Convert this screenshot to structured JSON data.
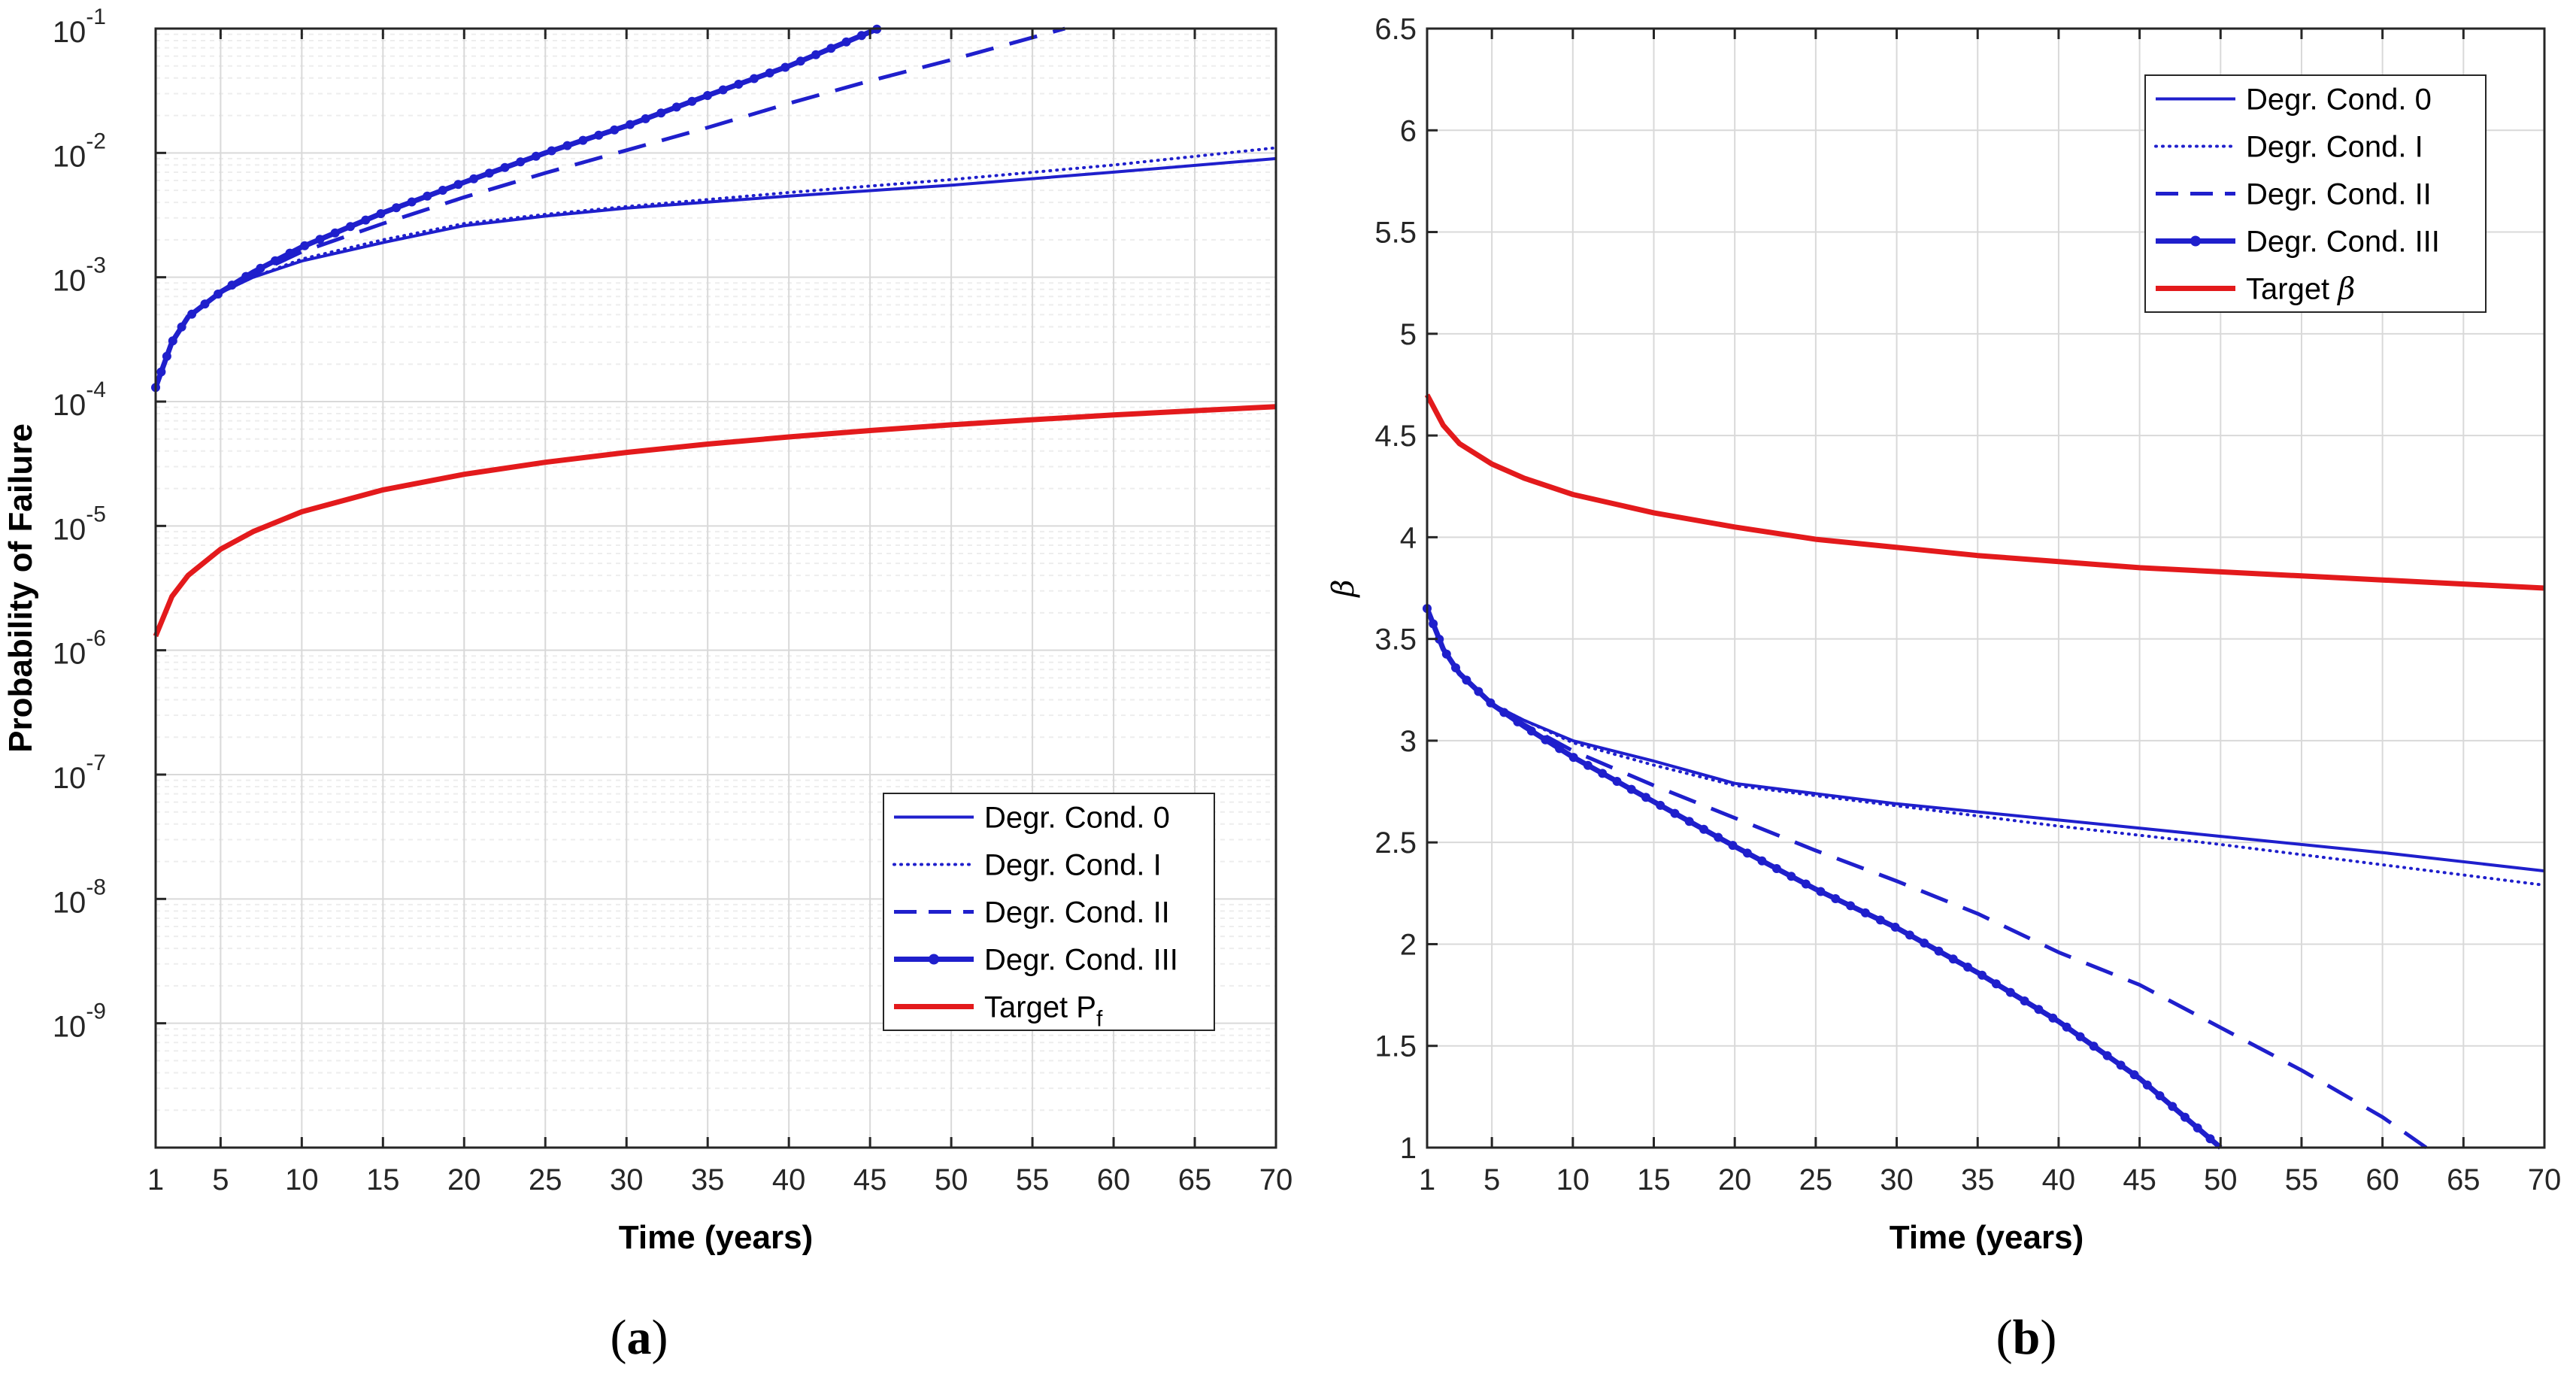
{
  "chart_data": [
    {
      "type": "line",
      "panel": "a",
      "caption": "(a)",
      "xlabel": "Time (years)",
      "ylabel": "Probability of Failure",
      "yscale": "log",
      "xlim": [
        1,
        70
      ],
      "ylim": [
        1e-10,
        0.1
      ],
      "grid": true,
      "legend_position": "bottom-right",
      "x_ticks": [
        1,
        5,
        10,
        15,
        20,
        25,
        30,
        35,
        40,
        45,
        50,
        55,
        60,
        65,
        70
      ],
      "x_tick_labels": [
        "1",
        "5",
        "10",
        "15",
        "20",
        "25",
        "30",
        "35",
        "40",
        "45",
        "50",
        "55",
        "60",
        "65",
        "70"
      ],
      "y_tick_labels": [
        {
          "base": "10",
          "exp": "-9"
        },
        {
          "base": "10",
          "exp": "-8"
        },
        {
          "base": "10",
          "exp": "-7"
        },
        {
          "base": "10",
          "exp": "-6"
        },
        {
          "base": "10",
          "exp": "-5"
        },
        {
          "base": "10",
          "exp": "-4"
        },
        {
          "base": "10",
          "exp": "-3"
        },
        {
          "base": "10",
          "exp": "-2"
        },
        {
          "base": "10",
          "exp": "-1"
        }
      ],
      "series": [
        {
          "name": "Degr. Cond. 0",
          "style": "solid",
          "color": "#1f1fcc",
          "x": [
            1,
            2,
            3,
            5,
            7,
            10,
            15,
            20,
            25,
            30,
            40,
            50,
            60,
            70
          ],
          "y": [
            0.00013,
            0.0003,
            0.00048,
            0.00075,
            0.001,
            0.00135,
            0.0019,
            0.0026,
            0.0031,
            0.0036,
            0.0045,
            0.0055,
            0.007,
            0.009
          ]
        },
        {
          "name": "Degr. Cond. I",
          "style": "dotted",
          "color": "#1f1fcc",
          "x": [
            1,
            2,
            3,
            5,
            7,
            10,
            15,
            20,
            25,
            30,
            40,
            50,
            60,
            70
          ],
          "y": [
            0.00013,
            0.0003,
            0.00048,
            0.00075,
            0.001,
            0.0014,
            0.002,
            0.0027,
            0.0032,
            0.0037,
            0.0048,
            0.0061,
            0.008,
            0.011
          ]
        },
        {
          "name": "Degr. Cond. II",
          "style": "dashed",
          "color": "#1f1fcc",
          "x": [
            1,
            2,
            3,
            5,
            7,
            10,
            15,
            20,
            25,
            30,
            35,
            40,
            45,
            50,
            57
          ],
          "y": [
            0.00013,
            0.0003,
            0.00048,
            0.00075,
            0.00105,
            0.0016,
            0.0027,
            0.0044,
            0.0069,
            0.0105,
            0.016,
            0.025,
            0.038,
            0.056,
            0.1
          ]
        },
        {
          "name": "Degr. Cond. III",
          "style": "solid-markers",
          "color": "#1f1fcc",
          "x": [
            1,
            2,
            3,
            5,
            7,
            10,
            15,
            20,
            25,
            30,
            35,
            40,
            45.5
          ],
          "y": [
            0.00013,
            0.0003,
            0.00048,
            0.00076,
            0.0011,
            0.00175,
            0.0033,
            0.0058,
            0.01,
            0.0165,
            0.029,
            0.05,
            0.1
          ]
        },
        {
          "name": "Target P",
          "name_sub": "f",
          "style": "solid",
          "color": "#e31a1c",
          "x": [
            1,
            2,
            3,
            5,
            7,
            10,
            15,
            20,
            25,
            30,
            35,
            40,
            45,
            50,
            55,
            60,
            65,
            70
          ],
          "y": [
            1.3e-06,
            2.7e-06,
            4e-06,
            6.5e-06,
            9e-06,
            1.3e-05,
            1.95e-05,
            2.6e-05,
            3.25e-05,
            3.9e-05,
            4.55e-05,
            5.2e-05,
            5.85e-05,
            6.5e-05,
            7.15e-05,
            7.8e-05,
            8.45e-05,
            9.1e-05
          ]
        }
      ]
    },
    {
      "type": "line",
      "panel": "b",
      "caption": "(b)",
      "xlabel": "Time (years)",
      "ylabel": "β",
      "yscale": "linear",
      "xlim": [
        1,
        70
      ],
      "ylim": [
        1,
        6.5
      ],
      "grid": true,
      "legend_position": "top-right",
      "x_ticks": [
        1,
        5,
        10,
        15,
        20,
        25,
        30,
        35,
        40,
        45,
        50,
        55,
        60,
        65,
        70
      ],
      "x_tick_labels": [
        "1",
        "5",
        "10",
        "15",
        "20",
        "25",
        "30",
        "35",
        "40",
        "45",
        "50",
        "55",
        "60",
        "65",
        "70"
      ],
      "y_ticks": [
        1,
        1.5,
        2,
        2.5,
        3,
        3.5,
        4,
        4.5,
        5,
        5.5,
        6,
        6.5
      ],
      "y_tick_labels": [
        "1",
        "1.5",
        "2",
        "2.5",
        "3",
        "3.5",
        "4",
        "4.5",
        "5",
        "5.5",
        "6",
        "6.5"
      ],
      "series": [
        {
          "name": "Degr. Cond. 0",
          "style": "solid",
          "color": "#1f1fcc",
          "x": [
            1,
            2,
            3,
            5,
            7,
            10,
            15,
            20,
            25,
            30,
            40,
            50,
            60,
            70
          ],
          "y": [
            3.65,
            3.45,
            3.33,
            3.18,
            3.1,
            3.0,
            2.9,
            2.79,
            2.74,
            2.69,
            2.61,
            2.53,
            2.45,
            2.36
          ]
        },
        {
          "name": "Degr. Cond. I",
          "style": "dotted",
          "color": "#1f1fcc",
          "x": [
            1,
            2,
            3,
            5,
            7,
            10,
            15,
            20,
            25,
            30,
            40,
            50,
            60,
            70
          ],
          "y": [
            3.65,
            3.45,
            3.33,
            3.18,
            3.1,
            2.99,
            2.88,
            2.78,
            2.73,
            2.68,
            2.58,
            2.49,
            2.39,
            2.29
          ]
        },
        {
          "name": "Degr. Cond. II",
          "style": "dashed",
          "color": "#1f1fcc",
          "x": [
            1,
            2,
            3,
            5,
            7,
            10,
            15,
            20,
            25,
            30,
            35,
            40,
            45,
            50,
            55,
            60,
            62.7
          ],
          "y": [
            3.65,
            3.45,
            3.33,
            3.18,
            3.08,
            2.95,
            2.78,
            2.62,
            2.46,
            2.31,
            2.15,
            1.96,
            1.8,
            1.59,
            1.38,
            1.15,
            1.0
          ]
        },
        {
          "name": "Degr. Cond. III",
          "style": "solid-markers",
          "color": "#1f1fcc",
          "x": [
            1,
            2,
            3,
            5,
            7,
            10,
            15,
            20,
            25,
            30,
            35,
            40,
            45,
            50
          ],
          "y": [
            3.65,
            3.45,
            3.33,
            3.18,
            3.07,
            2.92,
            2.7,
            2.48,
            2.27,
            2.08,
            1.86,
            1.62,
            1.34,
            1.0
          ]
        },
        {
          "name": "Target ",
          "name_italic": "β",
          "style": "solid",
          "color": "#e31a1c",
          "x": [
            1,
            2,
            3,
            5,
            7,
            10,
            15,
            20,
            25,
            30,
            35,
            40,
            45,
            50,
            55,
            60,
            65,
            70
          ],
          "y": [
            4.7,
            4.55,
            4.46,
            4.36,
            4.29,
            4.21,
            4.12,
            4.05,
            3.99,
            3.95,
            3.91,
            3.88,
            3.85,
            3.83,
            3.81,
            3.79,
            3.77,
            3.75
          ]
        }
      ]
    }
  ]
}
